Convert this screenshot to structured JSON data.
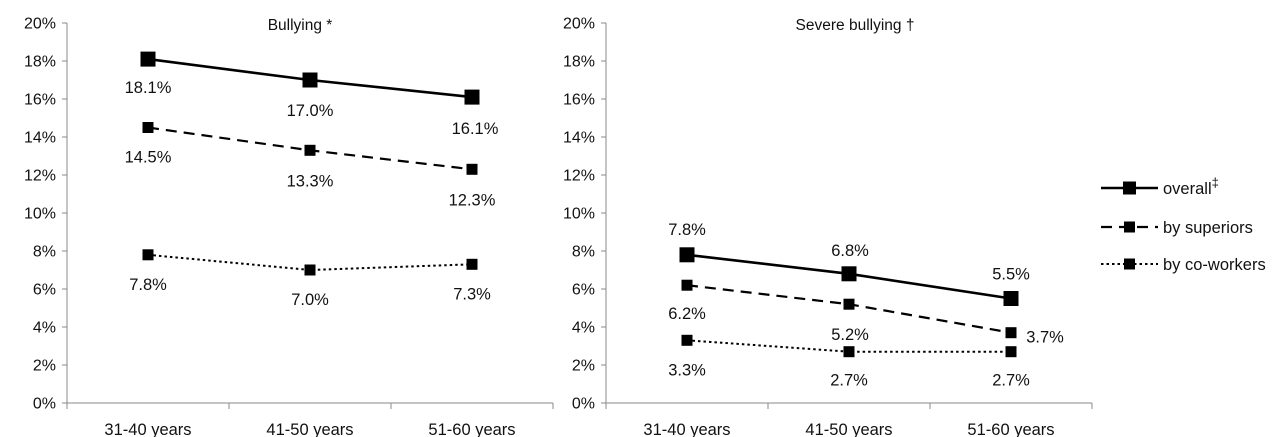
{
  "chart_data": [
    {
      "type": "line",
      "title": "Bullying *",
      "categories": [
        "31-40 years",
        "41-50 years",
        "51-60 years"
      ],
      "ylim": [
        0,
        20
      ],
      "yticks": [
        "0%",
        "2%",
        "4%",
        "6%",
        "8%",
        "10%",
        "12%",
        "14%",
        "16%",
        "18%",
        "20%"
      ],
      "grid": false,
      "series": [
        {
          "name": "overall‡",
          "values": [
            18.1,
            17.0,
            16.1
          ],
          "labels": [
            "18.1%",
            "17.0%",
            "16.1%"
          ]
        },
        {
          "name": "by superiors",
          "values": [
            14.5,
            13.3,
            12.3
          ],
          "labels": [
            "14.5%",
            "13.3%",
            "12.3%"
          ]
        },
        {
          "name": "by co-workers",
          "values": [
            7.8,
            7.0,
            7.3
          ],
          "labels": [
            "7.8%",
            "7.0%",
            "7.3%"
          ]
        }
      ]
    },
    {
      "type": "line",
      "title": "Severe bullying †",
      "categories": [
        "31-40 years",
        "41-50 years",
        "51-60 years"
      ],
      "ylim": [
        0,
        20
      ],
      "yticks": [
        "0%",
        "2%",
        "4%",
        "6%",
        "8%",
        "10%",
        "12%",
        "14%",
        "16%",
        "18%",
        "20%"
      ],
      "grid": false,
      "series": [
        {
          "name": "overall‡",
          "values": [
            7.8,
            6.8,
            5.5
          ],
          "labels": [
            "7.8%",
            "6.8%",
            "5.5%"
          ]
        },
        {
          "name": "by superiors",
          "values": [
            6.2,
            5.2,
            3.7
          ],
          "labels": [
            "6.2%",
            "5.2%",
            "3.7%"
          ]
        },
        {
          "name": "by co-workers",
          "values": [
            3.3,
            2.7,
            2.7
          ],
          "labels": [
            "3.3%",
            "2.7%",
            "2.7%"
          ]
        }
      ]
    }
  ],
  "legend": {
    "placement": "right",
    "items": [
      {
        "label": "overall",
        "superscript": "‡",
        "style": "solid"
      },
      {
        "label": "by superiors",
        "style": "dashed"
      },
      {
        "label": "by co-workers",
        "style": "dotted"
      }
    ]
  },
  "colors": {
    "line": "#000000",
    "axis": "#8a8a8a"
  }
}
